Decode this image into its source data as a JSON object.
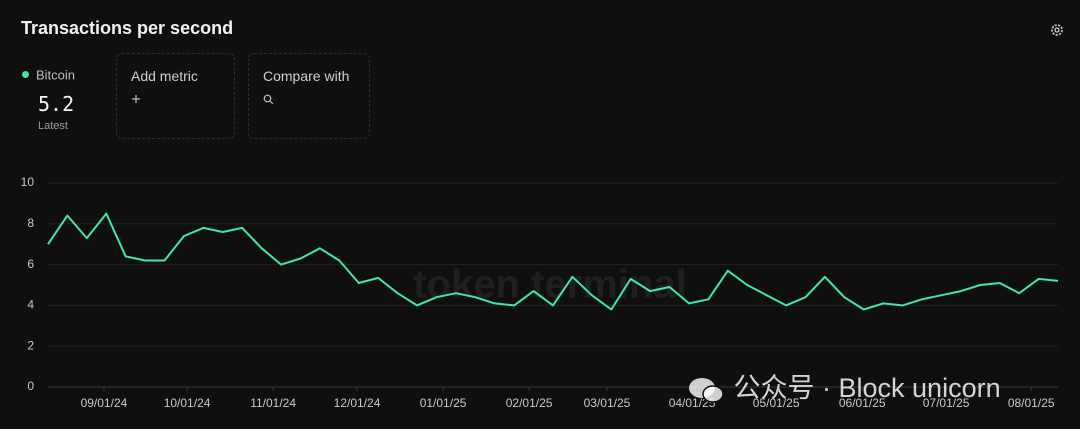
{
  "chart_data": {
    "type": "line",
    "title": "Transactions per second",
    "series": [
      {
        "name": "Bitcoin",
        "color": "#3ee8a8",
        "values": [
          7.0,
          8.4,
          7.3,
          8.5,
          6.4,
          6.2,
          6.2,
          7.4,
          7.8,
          7.6,
          7.8,
          6.8,
          6.0,
          6.3,
          6.8,
          6.2,
          5.1,
          5.35,
          4.6,
          4.0,
          4.4,
          4.6,
          4.4,
          4.1,
          4.0,
          4.7,
          4.0,
          5.4,
          4.5,
          3.8,
          5.3,
          4.7,
          4.9,
          4.1,
          4.3,
          5.7,
          5.0,
          4.5,
          4.0,
          4.4,
          5.4,
          4.4,
          3.8,
          4.1,
          4.0,
          4.3,
          4.5,
          4.7,
          5.0,
          5.1,
          4.6,
          5.3,
          5.2
        ]
      }
    ],
    "xlim": [
      0,
      52
    ],
    "xticks": [
      {
        "value": 2.88,
        "label": "09/01/24"
      },
      {
        "value": 7.16,
        "label": "10/01/24"
      },
      {
        "value": 11.59,
        "label": "11/01/24"
      },
      {
        "value": 15.91,
        "label": "12/01/24"
      },
      {
        "value": 20.34,
        "label": "01/01/25"
      },
      {
        "value": 24.77,
        "label": "02/01/25"
      },
      {
        "value": 28.78,
        "label": "03/01/25"
      },
      {
        "value": 33.16,
        "label": "04/01/25"
      },
      {
        "value": 37.49,
        "label": "05/01/25"
      },
      {
        "value": 41.92,
        "label": "06/01/25"
      },
      {
        "value": 46.24,
        "label": "07/01/25"
      },
      {
        "value": 50.62,
        "label": "08/01/25"
      }
    ],
    "ylim": [
      0,
      10
    ],
    "yticks": [
      0,
      2,
      4,
      6,
      8,
      10
    ],
    "grid": true
  },
  "latest": {
    "value": 5.2,
    "label": "Latest"
  },
  "controls": {
    "add_metric": "Add metric",
    "compare_with": "Compare with"
  },
  "watermarks": {
    "brand": "token terminal",
    "source": "公众号 · Block unicorn"
  }
}
